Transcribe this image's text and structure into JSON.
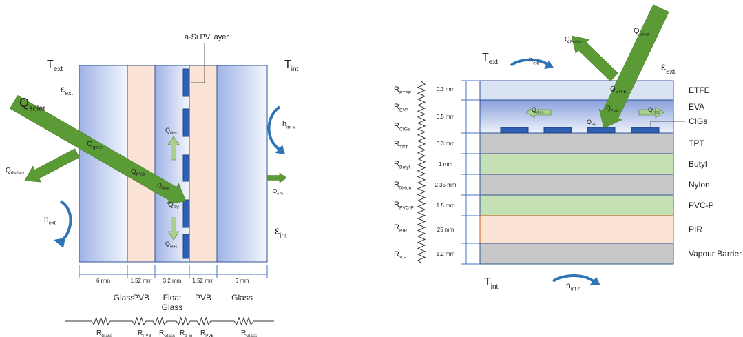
{
  "left": {
    "pv_layer_label": "a-Si PV layer",
    "symbols": [
      {
        "main": "T",
        "sub": "ext"
      },
      {
        "main": "ε",
        "sub": "ext"
      },
      {
        "main": "Q",
        "sub": "solar"
      },
      {
        "main": "Q",
        "sub": "Reflect"
      },
      {
        "main": "Q",
        "sub": "glass"
      },
      {
        "main": "Q",
        "sub": "PVB"
      },
      {
        "main": "Q",
        "sub": "float"
      },
      {
        "main": "Q",
        "sub": "PV"
      },
      {
        "main": "Q",
        "sub": "elec"
      },
      {
        "main": "Q",
        "sub": "elec"
      },
      {
        "main": "h",
        "sub": "ext"
      },
      {
        "main": "T",
        "sub": "int"
      },
      {
        "main": "h",
        "sub": "int-v"
      },
      {
        "main": "Q",
        "sub": "0-Tr"
      },
      {
        "main": "ε",
        "sub": "int"
      }
    ],
    "layers": [
      {
        "name": [
          "Glass"
        ],
        "thickness": "6 mm"
      },
      {
        "name": [
          "PVB"
        ],
        "thickness": "1.52 mm"
      },
      {
        "name": [
          "Float",
          "Glass"
        ],
        "thickness": "3.2 mm"
      },
      {
        "name": [
          "PVB"
        ],
        "thickness": "1.52 mm"
      },
      {
        "name": [
          "Glass"
        ],
        "thickness": "6 mm"
      }
    ],
    "resistors": [
      {
        "main": "R",
        "sub": "Glass"
      },
      {
        "main": "R",
        "sub": "PVB"
      },
      {
        "main": "R",
        "sub": "Glass"
      },
      {
        "main": "R",
        "sub": "a-Si"
      },
      {
        "main": "R",
        "sub": "PVB"
      },
      {
        "main": "R",
        "sub": "Glass"
      }
    ]
  },
  "right": {
    "cigs_label": "CIGs",
    "symbols": [
      {
        "main": "T",
        "sub": "ext"
      },
      {
        "main": "h",
        "sub": "ext"
      },
      {
        "main": "Q",
        "sub": "Reflect"
      },
      {
        "main": "Q",
        "sub": "solar"
      },
      {
        "main": "ε",
        "sub": "ext"
      },
      {
        "main": "Q",
        "sub": "ETFE"
      },
      {
        "main": "Q",
        "sub": "elec"
      },
      {
        "main": "Q",
        "sub": "EVA"
      },
      {
        "main": "Q",
        "sub": "elec"
      },
      {
        "main": "Q",
        "sub": "PV"
      },
      {
        "main": "T",
        "sub": "int"
      },
      {
        "main": "h",
        "sub": "int-h"
      }
    ],
    "layers": [
      {
        "name": "ETFE",
        "thickness": "0.3 mm"
      },
      {
        "name": "EVA",
        "thickness": "0.5 mm"
      },
      {
        "name": "TPT",
        "thickness": "0.3 mm"
      },
      {
        "name": "Butyl",
        "thickness": "1 mm"
      },
      {
        "name": "Nylon",
        "thickness": "2.35 mm"
      },
      {
        "name": "PVC-P",
        "thickness": "1.5 mm"
      },
      {
        "name": "PIR",
        "thickness": "25 mm"
      },
      {
        "name": "Vapour Barrier",
        "thickness": "1.2 mm"
      }
    ],
    "resistors": [
      {
        "main": "R",
        "sub": "ETFE"
      },
      {
        "main": "R",
        "sub": "EVA"
      },
      {
        "main": "R",
        "sub": "CIGs"
      },
      {
        "main": "R",
        "sub": "TPT"
      },
      {
        "main": "R",
        "sub": "Butyl"
      },
      {
        "main": "R",
        "sub": "Nylon"
      },
      {
        "main": "R",
        "sub": "PVC-P"
      },
      {
        "main": "R",
        "sub": "PIR"
      },
      {
        "main": "R",
        "sub": "V.P"
      }
    ]
  }
}
